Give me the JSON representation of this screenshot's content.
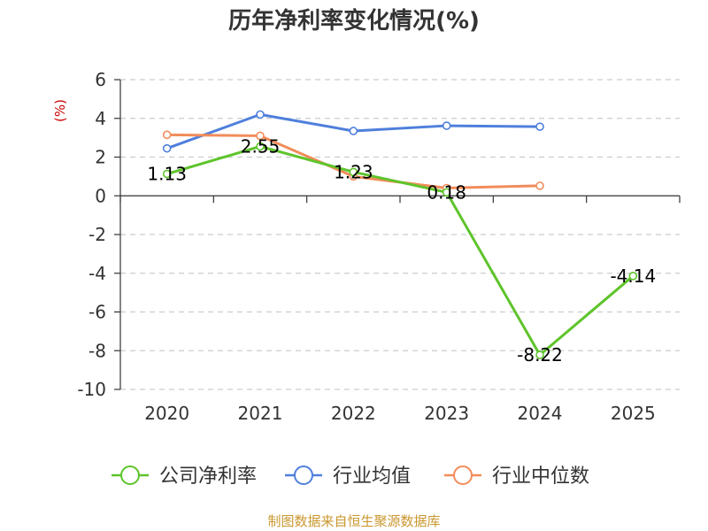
{
  "chart_data": {
    "type": "line",
    "title": "历年净利率变化情况(%)",
    "ylabel": "(%)",
    "xlabel": "",
    "ylim": [
      -10,
      6
    ],
    "yticks": [
      6,
      4,
      2,
      0,
      -2,
      -4,
      -6,
      -8,
      -10
    ],
    "grid": true,
    "legend_position": "bottom",
    "categories": [
      "2020",
      "2021",
      "2022",
      "2023",
      "2024",
      "2025"
    ],
    "series": [
      {
        "name": "公司净利率",
        "color": "#5ec42b",
        "values": [
          1.13,
          2.55,
          1.23,
          0.18,
          -8.22,
          -4.14
        ],
        "labels": [
          "1.13",
          "2.55",
          "1.23",
          "0.18",
          "-8.22",
          "-4.14"
        ]
      },
      {
        "name": "行业均值",
        "color": "#4f7fdc",
        "values": [
          2.45,
          4.2,
          3.35,
          3.62,
          3.57,
          null
        ],
        "labels": []
      },
      {
        "name": "行业中位数",
        "color": "#f28c5a",
        "values": [
          3.15,
          3.1,
          1.0,
          0.4,
          0.52,
          null
        ],
        "labels": []
      }
    ],
    "source": "制图数据来自恒生聚源数据库"
  }
}
